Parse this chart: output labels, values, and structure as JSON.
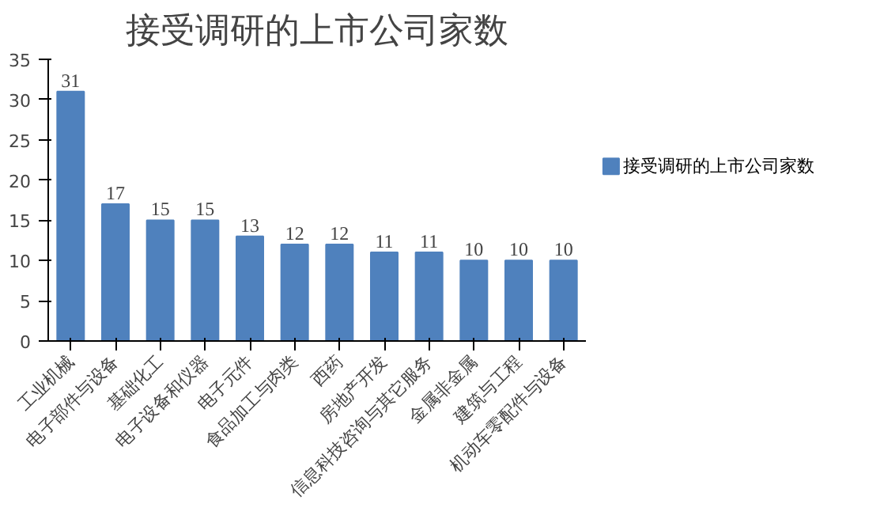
{
  "chart_data": {
    "type": "bar",
    "title": "接受调研的上市公司家数",
    "categories": [
      "工业机械",
      "电子部件与设备",
      "基础化工",
      "电子设备和仪器",
      "电子元件",
      "食品加工与肉类",
      "西药",
      "房地产开发",
      "信息科技咨询与其它服务",
      "金属非金属",
      "建筑与工程",
      "机动车零配件与设备"
    ],
    "series": [
      {
        "name": "接受调研的上市公司家数",
        "color": "#4f81bd",
        "values": [
          31,
          17,
          15,
          15,
          13,
          12,
          12,
          11,
          11,
          10,
          10,
          10
        ]
      }
    ],
    "ylim": [
      0,
      35
    ],
    "yticks": [
      0,
      5,
      10,
      15,
      20,
      25,
      30,
      35
    ],
    "data_labels": true,
    "legend": "right",
    "grid": false
  }
}
